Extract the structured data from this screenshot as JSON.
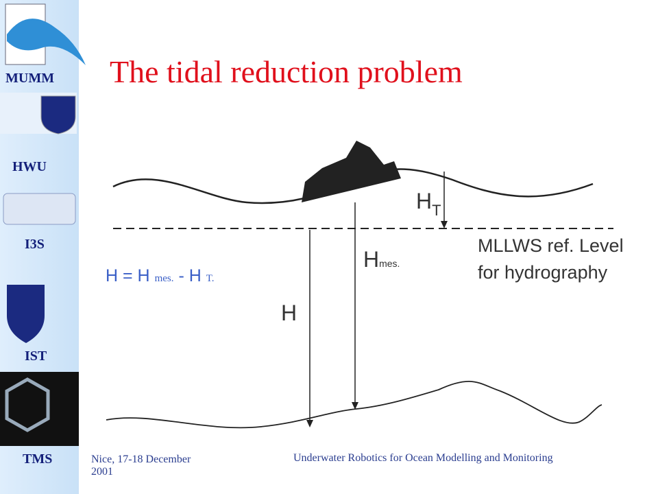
{
  "sidebar": {
    "labels": [
      "MUMM",
      "HWU",
      "I3S",
      "IST",
      "TMS"
    ]
  },
  "slide": {
    "title": "The tidal reduction problem",
    "formula": {
      "main": "H = H",
      "sub1": "mes.",
      "minus": "-  H",
      "sub2": "T."
    },
    "diagram": {
      "ht_label": "H",
      "ht_sub": "T",
      "hmes_label": "H",
      "hmes_sub": "mes.",
      "h_label": "H",
      "ref_line1": "MLLWS  ref. Level",
      "ref_line2": "for hydrography"
    }
  },
  "footer": {
    "left": "Nice, 17-18 December 2001",
    "right": "Underwater Robotics for Ocean Modelling and Monitoring"
  }
}
